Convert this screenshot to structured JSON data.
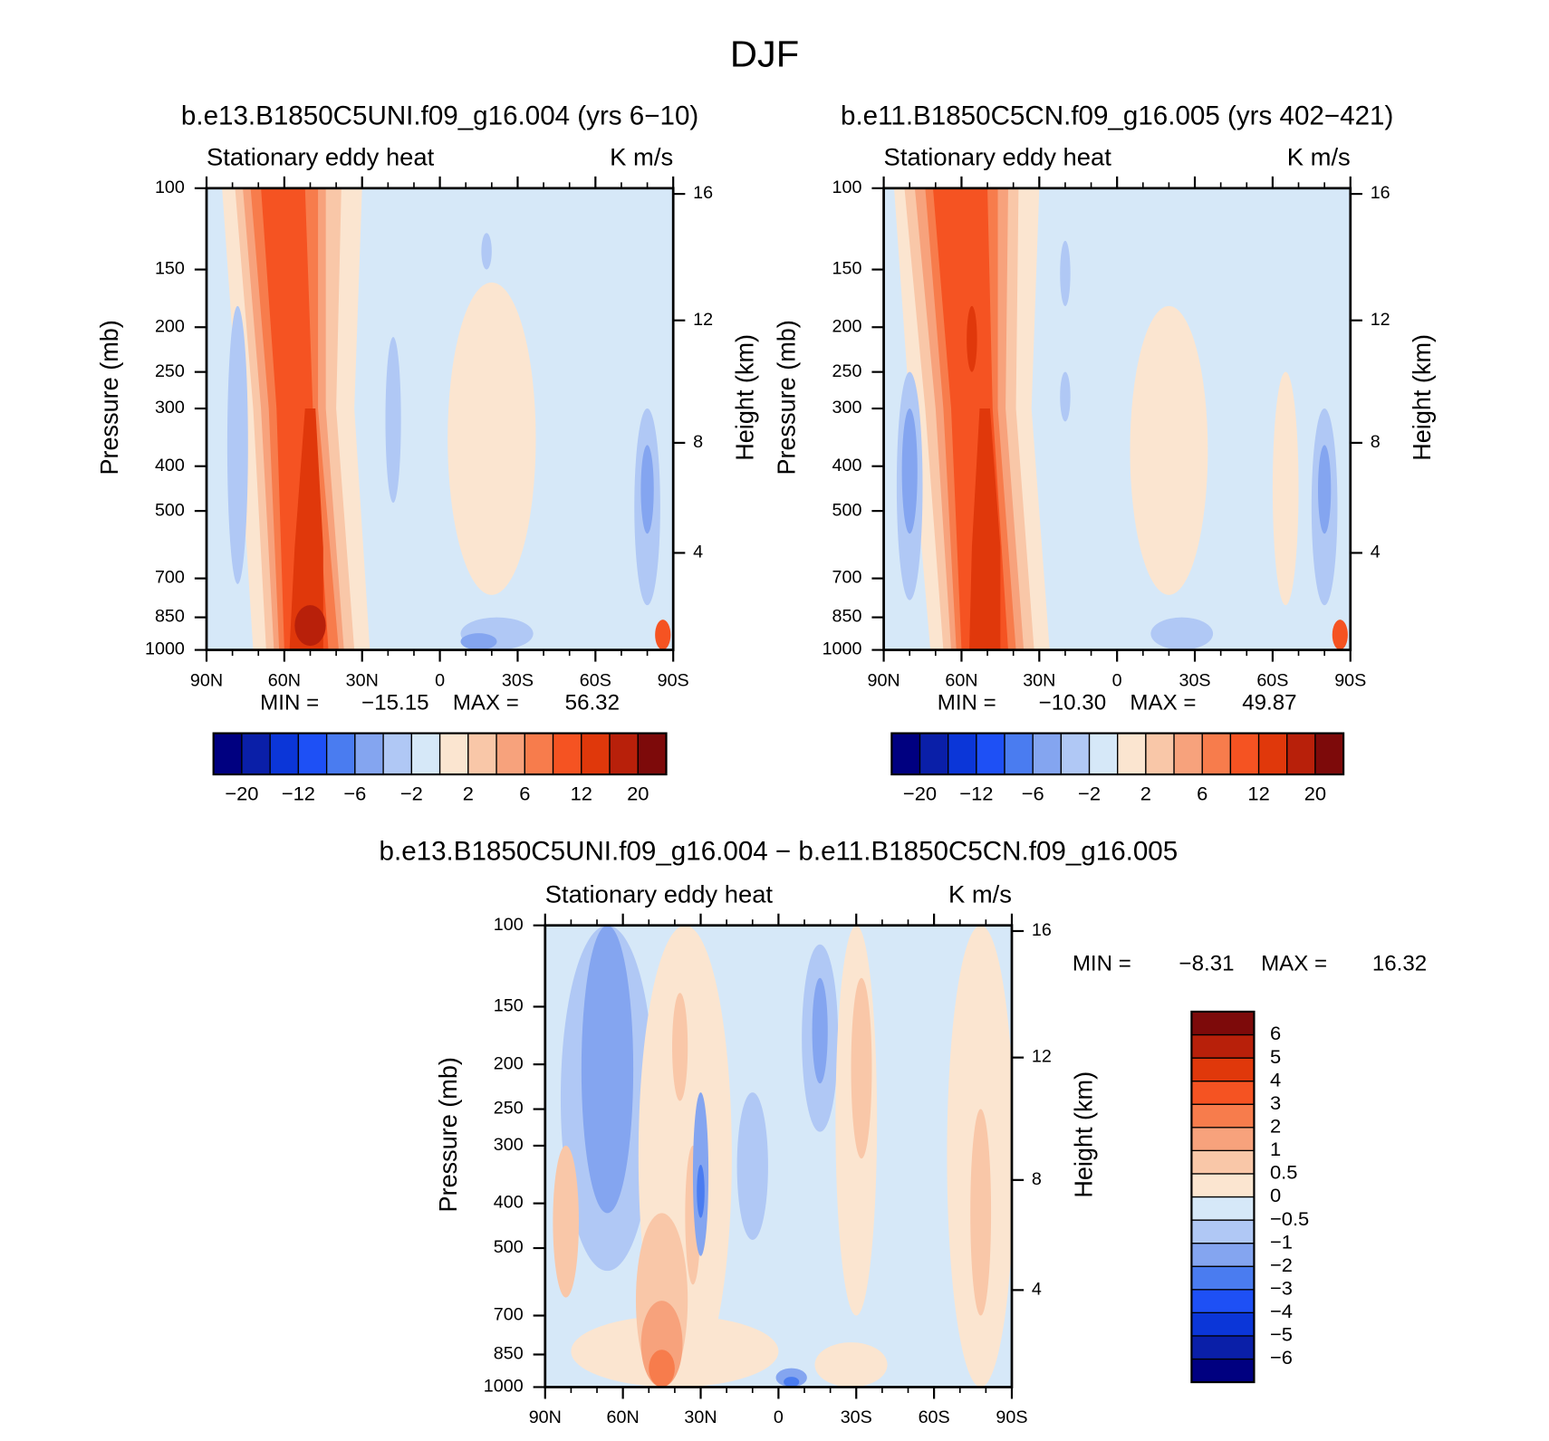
{
  "title": "DJF",
  "chart_data": [
    {
      "type": "contour",
      "title": "b.e13.B1850C5UNI.f09_g16.004 (yrs 6−10)",
      "left_string": "Stationary eddy heat",
      "right_string": "K m/s",
      "ylabel": "Pressure (mb)",
      "y2label": "Height (km)",
      "yscale": "log",
      "xlim": [
        90,
        -90
      ],
      "ylim": [
        1000,
        100
      ],
      "xticks": [
        {
          "value": 90,
          "label": "90N"
        },
        {
          "value": 60,
          "label": "60N"
        },
        {
          "value": 30,
          "label": "30N"
        },
        0,
        {
          "value": -30,
          "label": "30S"
        },
        {
          "value": -60,
          "label": "60S"
        },
        {
          "value": -90,
          "label": "90S"
        }
      ],
      "xminorticks": [
        80,
        70,
        50,
        40,
        20,
        10,
        -10,
        -20,
        -40,
        -50,
        -70,
        -80
      ],
      "yticks": [
        100,
        150,
        200,
        250,
        300,
        400,
        500,
        700,
        850,
        1000
      ],
      "y2ticks": [
        4,
        8,
        12,
        16
      ],
      "stats": {
        "names": [
          "MIN =",
          "MAX ="
        ],
        "values": [
          -15.15,
          56.32
        ],
        "value_labels": [
          "−15.15",
          "56.32"
        ]
      },
      "colorbar": {
        "orientation": "horizontal",
        "colors": [
          "#000080",
          "#0a1fa8",
          "#0b36d8",
          "#1e50f5",
          "#4a7cf0",
          "#84a5f0",
          "#b0c8f5",
          "#d6e8f8",
          "#fbe5d0",
          "#f9c7a8",
          "#f7a27c",
          "#f77c4c",
          "#f55322",
          "#e0380b",
          "#b8200a",
          "#7d0a0a"
        ],
        "labels": [
          {
            "value": -20,
            "label": "−20"
          },
          {
            "value": -12,
            "label": "−12"
          },
          {
            "value": -6,
            "label": "−6"
          },
          {
            "value": -2,
            "label": "−2"
          },
          2,
          6,
          12,
          20
        ]
      }
    },
    {
      "type": "contour",
      "title": "b.e11.B1850C5CN.f09_g16.005 (yrs 402−421)",
      "left_string": "Stationary eddy heat",
      "right_string": "K m/s",
      "ylabel": "Pressure (mb)",
      "y2label": "Height (km)",
      "yscale": "log",
      "xlim": [
        90,
        -90
      ],
      "ylim": [
        1000,
        100
      ],
      "xticks": [
        {
          "value": 90,
          "label": "90N"
        },
        {
          "value": 60,
          "label": "60N"
        },
        {
          "value": 30,
          "label": "30N"
        },
        0,
        {
          "value": -30,
          "label": "30S"
        },
        {
          "value": -60,
          "label": "60S"
        },
        {
          "value": -90,
          "label": "90S"
        }
      ],
      "xminorticks": [
        80,
        70,
        50,
        40,
        20,
        10,
        -10,
        -20,
        -40,
        -50,
        -70,
        -80
      ],
      "yticks": [
        100,
        150,
        200,
        250,
        300,
        400,
        500,
        700,
        850,
        1000
      ],
      "y2ticks": [
        4,
        8,
        12,
        16
      ],
      "stats": {
        "names": [
          "MIN =",
          "MAX ="
        ],
        "values": [
          -10.3,
          49.87
        ],
        "value_labels": [
          "−10.30",
          "49.87"
        ]
      },
      "colorbar": {
        "orientation": "horizontal",
        "colors": [
          "#000080",
          "#0a1fa8",
          "#0b36d8",
          "#1e50f5",
          "#4a7cf0",
          "#84a5f0",
          "#b0c8f5",
          "#d6e8f8",
          "#fbe5d0",
          "#f9c7a8",
          "#f7a27c",
          "#f77c4c",
          "#f55322",
          "#e0380b",
          "#b8200a",
          "#7d0a0a"
        ],
        "labels": [
          {
            "value": -20,
            "label": "−20"
          },
          {
            "value": -12,
            "label": "−12"
          },
          {
            "value": -6,
            "label": "−6"
          },
          {
            "value": -2,
            "label": "−2"
          },
          2,
          6,
          12,
          20
        ]
      }
    },
    {
      "type": "contour",
      "title": "b.e13.B1850C5UNI.f09_g16.004 − b.e11.B1850C5CN.f09_g16.005",
      "left_string": "Stationary eddy heat",
      "right_string": "K m/s",
      "ylabel": "Pressure (mb)",
      "y2label": "Height (km)",
      "yscale": "log",
      "xlim": [
        90,
        -90
      ],
      "ylim": [
        1000,
        100
      ],
      "xticks": [
        {
          "value": 90,
          "label": "90N"
        },
        {
          "value": 60,
          "label": "60N"
        },
        {
          "value": 30,
          "label": "30N"
        },
        0,
        {
          "value": -30,
          "label": "30S"
        },
        {
          "value": -60,
          "label": "60S"
        },
        {
          "value": -90,
          "label": "90S"
        }
      ],
      "xminorticks": [
        80,
        70,
        50,
        40,
        20,
        10,
        -10,
        -20,
        -40,
        -50,
        -70,
        -80
      ],
      "yticks": [
        100,
        150,
        200,
        250,
        300,
        400,
        500,
        700,
        850,
        1000
      ],
      "y2ticks": [
        4,
        8,
        12,
        16
      ],
      "stats": {
        "names": [
          "MIN =",
          "MAX ="
        ],
        "values": [
          -8.31,
          16.32
        ],
        "value_labels": [
          "−8.31",
          "16.32"
        ]
      },
      "colorbar": {
        "orientation": "vertical",
        "colors": [
          "#000080",
          "#0a1fa8",
          "#0b36d8",
          "#1e50f5",
          "#4a7cf0",
          "#84a5f0",
          "#b0c8f5",
          "#d6e8f8",
          "#fbe5d0",
          "#f9c7a8",
          "#f7a27c",
          "#f77c4c",
          "#f55322",
          "#e0380b",
          "#b8200a",
          "#7d0a0a"
        ],
        "labels": [
          {
            "value": -6,
            "label": "−6"
          },
          {
            "value": -5,
            "label": "−5"
          },
          {
            "value": -4,
            "label": "−4"
          },
          {
            "value": -3,
            "label": "−3"
          },
          {
            "value": -2,
            "label": "−2"
          },
          {
            "value": -1,
            "label": "−1"
          },
          {
            "value": -0.5,
            "label": "−0.5"
          },
          0,
          0.5,
          1,
          2,
          3,
          4,
          5,
          6
        ]
      }
    }
  ]
}
